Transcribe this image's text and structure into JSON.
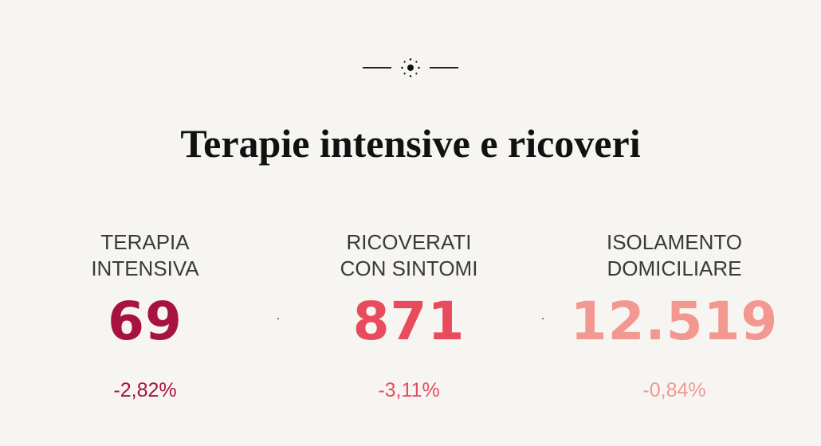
{
  "divider": {
    "icon": "sun-icon"
  },
  "title": "Terapie intensive e ricoveri",
  "stats": [
    {
      "label_lines": [
        "TERAPIA",
        "INTENSIVA"
      ],
      "value": "69",
      "change": "-2,82%",
      "color": "#a8123e"
    },
    {
      "label_lines": [
        "RICOVERATI",
        "CON SINTOMI"
      ],
      "value": "871",
      "change": "-3,11%",
      "color": "#e84c5c"
    },
    {
      "label_lines": [
        "ISOLAMENTO",
        "DOMICILIARE"
      ],
      "value": "12.519",
      "change": "-0,84%",
      "color": "#f29890"
    }
  ]
}
